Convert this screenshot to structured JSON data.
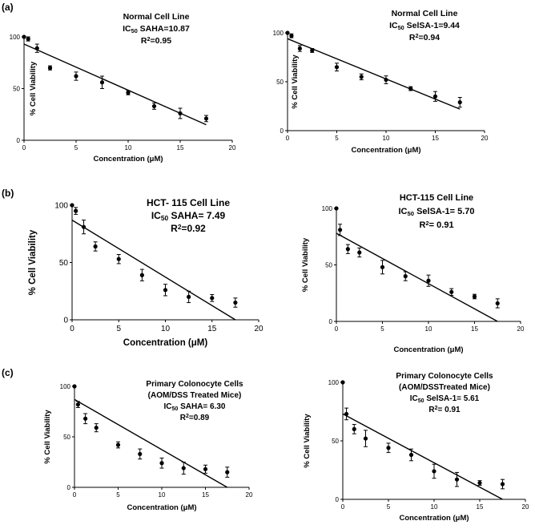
{
  "figure": {
    "panel_labels": [
      "(a)",
      "(b)",
      "(c)"
    ]
  },
  "chart_data": [
    {
      "type": "scatter",
      "title_lines": [
        "Normal Cell Line",
        "IC50 SAHA=10.87",
        "R2=0.95"
      ],
      "xlabel": "Concentration (μM)",
      "ylabel": "% Cell Viability",
      "xlim": [
        0,
        20
      ],
      "ylim": [
        0,
        100
      ],
      "xticks": [
        0,
        5,
        10,
        15,
        20
      ],
      "yticks": [
        0,
        50,
        100
      ],
      "x": [
        0,
        0.4,
        1.25,
        2.5,
        5,
        7.5,
        10,
        12.5,
        15,
        17.5
      ],
      "y": [
        100,
        98,
        89,
        70,
        62,
        56,
        46,
        33,
        26,
        21
      ],
      "err": [
        0,
        2,
        4,
        2,
        4,
        6,
        2,
        3,
        5,
        3
      ],
      "fit": {
        "x0": 0,
        "y0": 93,
        "x1": 17.5,
        "y1": 15
      }
    },
    {
      "type": "scatter",
      "title_lines": [
        "Normal Cell Line",
        "IC50 SelSA-1=9.44",
        "R2=0.94"
      ],
      "xlabel": "Concentration (μM)",
      "ylabel": "% Cell Viability",
      "xlim": [
        0,
        20
      ],
      "ylim": [
        0,
        100
      ],
      "xticks": [
        0,
        5,
        10,
        15,
        20
      ],
      "yticks": [
        0,
        50,
        100
      ],
      "x": [
        0,
        0.4,
        1.25,
        2.5,
        5,
        7.5,
        10,
        12.5,
        15,
        17.5
      ],
      "y": [
        100,
        97,
        84,
        82,
        65,
        55,
        52,
        43,
        35,
        29
      ],
      "err": [
        0,
        2,
        3,
        2,
        4,
        3,
        4,
        2,
        5,
        5
      ],
      "fit": {
        "x0": 0,
        "y0": 94,
        "x1": 17.5,
        "y1": 22
      }
    },
    {
      "type": "scatter",
      "title_lines": [
        "HCT- 115 Cell Line",
        "IC50 SAHA= 7.49",
        "R2=0.92"
      ],
      "xlabel": "Concentration (μM)",
      "ylabel": "% Cell Viability",
      "xlim": [
        0,
        20
      ],
      "ylim": [
        0,
        100
      ],
      "xticks": [
        0,
        5,
        10,
        15,
        20
      ],
      "yticks": [
        0,
        50,
        100
      ],
      "x": [
        0,
        0.4,
        1.25,
        2.5,
        5,
        7.5,
        10,
        12.5,
        15,
        17.5
      ],
      "y": [
        100,
        95,
        81,
        64,
        53,
        39,
        26,
        20,
        19,
        15
      ],
      "err": [
        0,
        3,
        6,
        4,
        4,
        5,
        5,
        5,
        3,
        4
      ],
      "fit": {
        "x0": 0,
        "y0": 87,
        "x1": 17.5,
        "y1": 0
      }
    },
    {
      "type": "scatter",
      "title_lines": [
        "HCT-115 Cell Line",
        "IC50 SelSA-1= 5.70",
        "R2= 0.91"
      ],
      "xlabel": "Concentration (μM)",
      "ylabel": "% Cell Viability",
      "xlim": [
        0,
        20
      ],
      "ylim": [
        0,
        100
      ],
      "xticks": [
        0,
        5,
        10,
        15,
        20
      ],
      "yticks": [
        0,
        50,
        100
      ],
      "x": [
        0,
        0.4,
        1.25,
        2.5,
        5,
        7.5,
        10,
        12.5,
        15,
        17.5
      ],
      "y": [
        100,
        81,
        64,
        61,
        48,
        40,
        36,
        26,
        22,
        16
      ],
      "err": [
        0,
        5,
        4,
        4,
        6,
        4,
        5,
        3,
        2,
        4
      ],
      "fit": {
        "x0": 0,
        "y0": 78,
        "x1": 17.5,
        "y1": 0
      }
    },
    {
      "type": "scatter",
      "title_lines": [
        "Primary Colonocyte Cells",
        "(AOM/DSS Treated Mice)",
        "IC50 SAHA= 6.30",
        "R2=0.89"
      ],
      "xlabel": "Concentration (μM)",
      "ylabel": "% Cell Viability",
      "xlim": [
        0,
        20
      ],
      "ylim": [
        0,
        100
      ],
      "xticks": [
        0,
        5,
        10,
        15,
        20
      ],
      "yticks": [
        0,
        50,
        100
      ],
      "x": [
        0,
        0.4,
        1.25,
        2.5,
        5,
        7.5,
        10,
        12.5,
        15,
        17.5
      ],
      "y": [
        100,
        82,
        68,
        59,
        42,
        33,
        24,
        19,
        18,
        15
      ],
      "err": [
        0,
        3,
        5,
        4,
        3,
        5,
        5,
        6,
        4,
        5
      ],
      "fit": {
        "x0": 0,
        "y0": 87,
        "x1": 17.5,
        "y1": 0
      }
    },
    {
      "type": "scatter",
      "title_lines": [
        "Primary Colonocyte Cells",
        "(AOM/DSSTreated Mice)",
        "IC50 SelSA-1= 5.61",
        "R2= 0.91"
      ],
      "xlabel": "Concentration (μM)",
      "ylabel": "% Cell Viability",
      "xlim": [
        0,
        20
      ],
      "ylim": [
        0,
        100
      ],
      "xticks": [
        0,
        5,
        10,
        15,
        20
      ],
      "yticks": [
        0,
        50,
        100
      ],
      "x": [
        0,
        0.4,
        1.25,
        2.5,
        5,
        7.5,
        10,
        12.5,
        15,
        17.5
      ],
      "y": [
        100,
        73,
        60,
        52,
        44,
        38,
        24,
        17,
        14,
        13
      ],
      "err": [
        0,
        5,
        4,
        7,
        4,
        5,
        6,
        6,
        2,
        4
      ],
      "fit": {
        "x0": 0,
        "y0": 73,
        "x1": 17.5,
        "y1": 0
      }
    }
  ]
}
